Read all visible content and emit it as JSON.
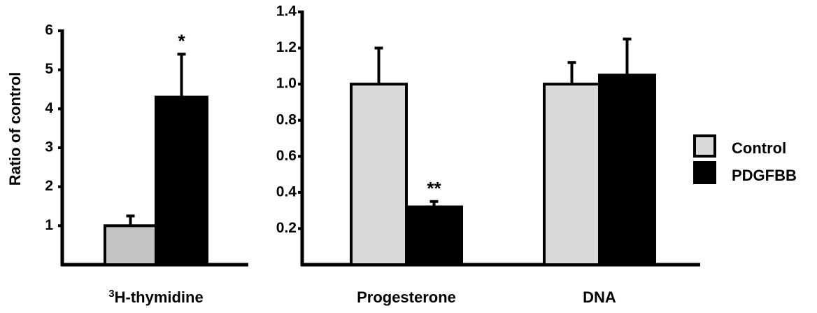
{
  "chart_data": [
    {
      "type": "bar",
      "ylabel": "Ratio of control",
      "ylim": [
        0,
        6
      ],
      "yticks": [
        "1",
        "2",
        "3",
        "4",
        "5",
        "6"
      ],
      "categories": [
        {
          "label_sup": "3",
          "label_main": "H-thymidine"
        }
      ],
      "series": [
        {
          "name": "Control",
          "values": [
            1.0
          ],
          "errors": [
            0.25
          ]
        },
        {
          "name": "PDGFBB",
          "values": [
            4.3
          ],
          "errors": [
            1.1
          ]
        }
      ],
      "annotations": [
        {
          "category": 0,
          "series": 1,
          "text": "*"
        }
      ]
    },
    {
      "type": "bar",
      "ylim": [
        0,
        1.4
      ],
      "yticks": [
        "0.2",
        "0.4",
        "0.6",
        "0.8",
        "1.0",
        "1.2",
        "1.4"
      ],
      "categories": [
        {
          "label_sup": "",
          "label_main": "Progesterone"
        },
        {
          "label_sup": "",
          "label_main": "DNA"
        }
      ],
      "series": [
        {
          "name": "Control",
          "values": [
            1.0,
            1.0
          ],
          "errors": [
            0.2,
            0.12
          ]
        },
        {
          "name": "PDGFBB",
          "values": [
            0.32,
            1.05
          ],
          "errors": [
            0.03,
            0.2
          ]
        }
      ],
      "annotations": [
        {
          "category": 0,
          "series": 1,
          "text": "**"
        }
      ]
    }
  ],
  "legend": {
    "position": "right",
    "items": [
      {
        "label": "Control",
        "color": "#d9d9d9"
      },
      {
        "label": "PDGFBB",
        "color": "#000000"
      }
    ]
  },
  "colors": {
    "control_left_panel": "#c4c4c4",
    "control": "#d9d9d9",
    "pdgfbb": "#000000"
  }
}
